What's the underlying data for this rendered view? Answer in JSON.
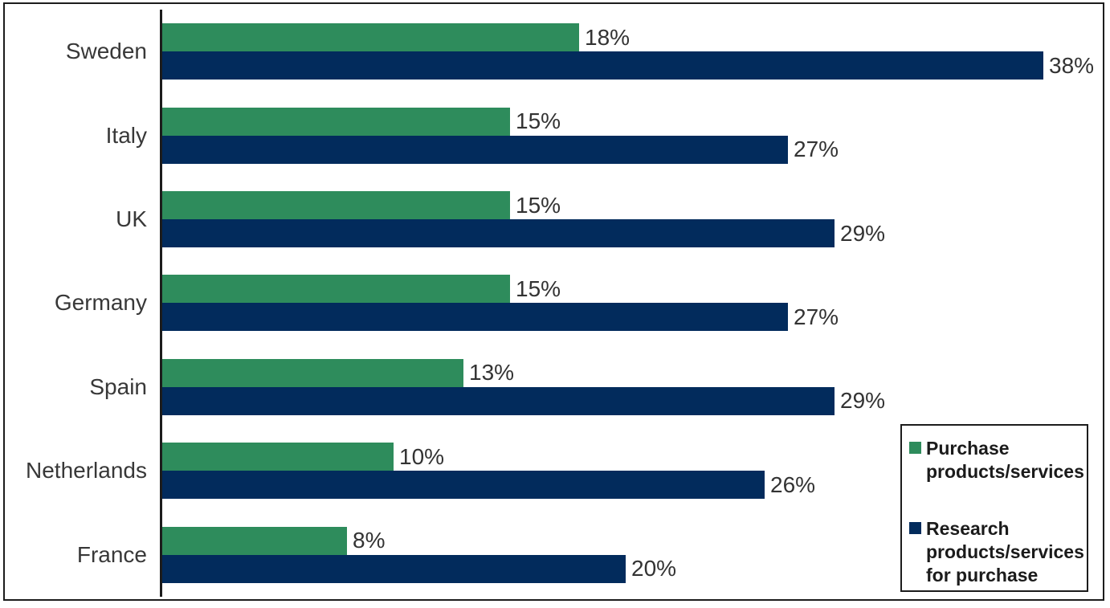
{
  "chart_data": {
    "type": "bar",
    "orientation": "horizontal",
    "title": "",
    "categories": [
      "Sweden",
      "Italy",
      "UK",
      "Germany",
      "Spain",
      "Netherlands",
      "France"
    ],
    "series": [
      {
        "key": "purchase",
        "name": "Purchase products/services",
        "color": "#2E8C5C",
        "values": [
          18,
          15,
          15,
          15,
          13,
          10,
          8
        ]
      },
      {
        "key": "research",
        "name": "Research products/services for purchase",
        "color": "#022B5C",
        "values": [
          38,
          27,
          29,
          27,
          29,
          26,
          20
        ]
      }
    ],
    "value_suffix": "%",
    "data_labels": true,
    "xlim": [
      0,
      40
    ],
    "grid": false,
    "axis_ticks_visible": false,
    "legend_position": "bottom-right"
  },
  "legend": {
    "items": [
      {
        "label": "Purchase products/services",
        "color": "#2E8C5C"
      },
      {
        "label": "Research products/services for purchase",
        "color": "#022B5C"
      }
    ]
  }
}
